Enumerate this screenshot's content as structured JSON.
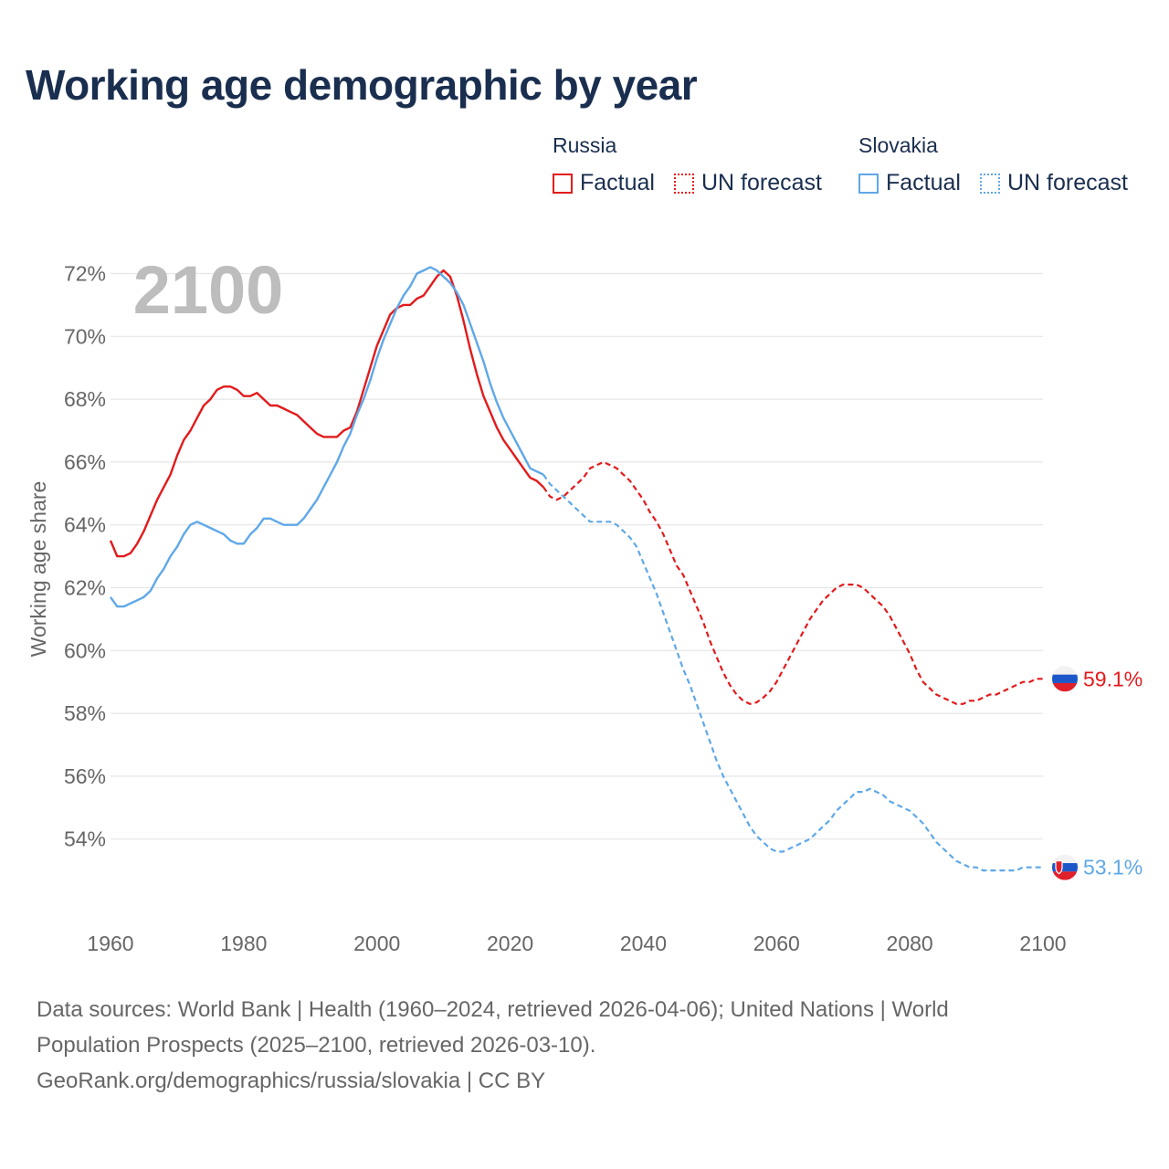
{
  "title": "Working age demographic by year",
  "legend": {
    "groups": [
      {
        "name": "Russia",
        "color": "#e31a1c",
        "items": [
          {
            "label": "Factual",
            "style": "solid"
          },
          {
            "label": "UN forecast",
            "style": "dotted"
          }
        ]
      },
      {
        "name": "Slovakia",
        "color": "#5fa8e8",
        "items": [
          {
            "label": "Factual",
            "style": "solid"
          },
          {
            "label": "UN forecast",
            "style": "dotted"
          }
        ]
      }
    ]
  },
  "year_watermark": "2100",
  "footer": {
    "line1": "Data sources: World Bank | Health (1960–2024, retrieved 2026-04-06); United Nations | World",
    "line2": "Population Prospects (2025–2100, retrieved 2026-03-10).",
    "line3": "GeoRank.org/demographics/russia/slovakia | CC BY"
  },
  "chart_data": {
    "type": "line",
    "title": "Working age demographic by year",
    "xlabel": "",
    "ylabel": "Working age share",
    "xlim": [
      1960,
      2100
    ],
    "ylim": [
      52.5,
      72.5
    ],
    "x_ticks": [
      1960,
      1980,
      2000,
      2020,
      2040,
      2060,
      2080,
      2100
    ],
    "y_ticks": [
      54,
      56,
      58,
      60,
      62,
      64,
      66,
      68,
      70,
      72
    ],
    "y_tick_suffix": "%",
    "grid": true,
    "series": [
      {
        "name": "Russia",
        "color": "#e31a1c",
        "forecast_start": 2025,
        "end_label": "59.1%",
        "points": [
          [
            1960,
            63.5
          ],
          [
            1961,
            63.0
          ],
          [
            1962,
            63.0
          ],
          [
            1963,
            63.1
          ],
          [
            1964,
            63.4
          ],
          [
            1965,
            63.8
          ],
          [
            1966,
            64.3
          ],
          [
            1967,
            64.8
          ],
          [
            1968,
            65.2
          ],
          [
            1969,
            65.6
          ],
          [
            1970,
            66.2
          ],
          [
            1971,
            66.7
          ],
          [
            1972,
            67.0
          ],
          [
            1973,
            67.4
          ],
          [
            1974,
            67.8
          ],
          [
            1975,
            68.0
          ],
          [
            1976,
            68.3
          ],
          [
            1977,
            68.4
          ],
          [
            1978,
            68.4
          ],
          [
            1979,
            68.3
          ],
          [
            1980,
            68.1
          ],
          [
            1981,
            68.1
          ],
          [
            1982,
            68.2
          ],
          [
            1983,
            68.0
          ],
          [
            1984,
            67.8
          ],
          [
            1985,
            67.8
          ],
          [
            1986,
            67.7
          ],
          [
            1987,
            67.6
          ],
          [
            1988,
            67.5
          ],
          [
            1989,
            67.3
          ],
          [
            1990,
            67.1
          ],
          [
            1991,
            66.9
          ],
          [
            1992,
            66.8
          ],
          [
            1993,
            66.8
          ],
          [
            1994,
            66.8
          ],
          [
            1995,
            67.0
          ],
          [
            1996,
            67.1
          ],
          [
            1997,
            67.6
          ],
          [
            1998,
            68.3
          ],
          [
            1999,
            69.0
          ],
          [
            2000,
            69.7
          ],
          [
            2001,
            70.2
          ],
          [
            2002,
            70.7
          ],
          [
            2003,
            70.9
          ],
          [
            2004,
            71.0
          ],
          [
            2005,
            71.0
          ],
          [
            2006,
            71.2
          ],
          [
            2007,
            71.3
          ],
          [
            2008,
            71.6
          ],
          [
            2009,
            71.9
          ],
          [
            2010,
            72.1
          ],
          [
            2011,
            71.9
          ],
          [
            2012,
            71.3
          ],
          [
            2013,
            70.5
          ],
          [
            2014,
            69.6
          ],
          [
            2015,
            68.8
          ],
          [
            2016,
            68.1
          ],
          [
            2017,
            67.6
          ],
          [
            2018,
            67.1
          ],
          [
            2019,
            66.7
          ],
          [
            2020,
            66.4
          ],
          [
            2021,
            66.1
          ],
          [
            2022,
            65.8
          ],
          [
            2023,
            65.5
          ],
          [
            2024,
            65.4
          ],
          [
            2025,
            65.2
          ],
          [
            2026,
            64.9
          ],
          [
            2027,
            64.8
          ],
          [
            2028,
            64.9
          ],
          [
            2029,
            65.1
          ],
          [
            2030,
            65.3
          ],
          [
            2031,
            65.5
          ],
          [
            2032,
            65.8
          ],
          [
            2033,
            65.9
          ],
          [
            2034,
            66.0
          ],
          [
            2035,
            65.9
          ],
          [
            2036,
            65.8
          ],
          [
            2037,
            65.6
          ],
          [
            2038,
            65.4
          ],
          [
            2039,
            65.1
          ],
          [
            2040,
            64.8
          ],
          [
            2041,
            64.4
          ],
          [
            2042,
            64.1
          ],
          [
            2043,
            63.7
          ],
          [
            2044,
            63.2
          ],
          [
            2045,
            62.7
          ],
          [
            2046,
            62.4
          ],
          [
            2047,
            61.9
          ],
          [
            2048,
            61.4
          ],
          [
            2049,
            60.9
          ],
          [
            2050,
            60.3
          ],
          [
            2051,
            59.8
          ],
          [
            2052,
            59.3
          ],
          [
            2053,
            58.9
          ],
          [
            2054,
            58.6
          ],
          [
            2055,
            58.4
          ],
          [
            2056,
            58.3
          ],
          [
            2057,
            58.35
          ],
          [
            2058,
            58.5
          ],
          [
            2059,
            58.7
          ],
          [
            2060,
            59.0
          ],
          [
            2061,
            59.4
          ],
          [
            2062,
            59.8
          ],
          [
            2063,
            60.2
          ],
          [
            2064,
            60.6
          ],
          [
            2065,
            61.0
          ],
          [
            2066,
            61.3
          ],
          [
            2067,
            61.6
          ],
          [
            2068,
            61.8
          ],
          [
            2069,
            62.0
          ],
          [
            2070,
            62.1
          ],
          [
            2071,
            62.1
          ],
          [
            2072,
            62.1
          ],
          [
            2073,
            62.0
          ],
          [
            2074,
            61.8
          ],
          [
            2075,
            61.6
          ],
          [
            2076,
            61.4
          ],
          [
            2077,
            61.1
          ],
          [
            2078,
            60.7
          ],
          [
            2079,
            60.3
          ],
          [
            2080,
            59.9
          ],
          [
            2081,
            59.4
          ],
          [
            2082,
            59.0
          ],
          [
            2083,
            58.8
          ],
          [
            2084,
            58.6
          ],
          [
            2085,
            58.5
          ],
          [
            2086,
            58.4
          ],
          [
            2087,
            58.3
          ],
          [
            2088,
            58.3
          ],
          [
            2089,
            58.4
          ],
          [
            2090,
            58.4
          ],
          [
            2091,
            58.5
          ],
          [
            2092,
            58.6
          ],
          [
            2093,
            58.6
          ],
          [
            2094,
            58.7
          ],
          [
            2095,
            58.8
          ],
          [
            2096,
            58.9
          ],
          [
            2097,
            59.0
          ],
          [
            2098,
            59.0
          ],
          [
            2099,
            59.1
          ],
          [
            2100,
            59.1
          ]
        ]
      },
      {
        "name": "Slovakia",
        "color": "#5fa8e8",
        "forecast_start": 2025,
        "end_label": "53.1%",
        "points": [
          [
            1960,
            61.7
          ],
          [
            1961,
            61.4
          ],
          [
            1962,
            61.4
          ],
          [
            1963,
            61.5
          ],
          [
            1964,
            61.6
          ],
          [
            1965,
            61.7
          ],
          [
            1966,
            61.9
          ],
          [
            1967,
            62.3
          ],
          [
            1968,
            62.6
          ],
          [
            1969,
            63.0
          ],
          [
            1970,
            63.3
          ],
          [
            1971,
            63.7
          ],
          [
            1972,
            64.0
          ],
          [
            1973,
            64.1
          ],
          [
            1974,
            64.0
          ],
          [
            1975,
            63.9
          ],
          [
            1976,
            63.8
          ],
          [
            1977,
            63.7
          ],
          [
            1978,
            63.5
          ],
          [
            1979,
            63.4
          ],
          [
            1980,
            63.4
          ],
          [
            1981,
            63.7
          ],
          [
            1982,
            63.9
          ],
          [
            1983,
            64.2
          ],
          [
            1984,
            64.2
          ],
          [
            1985,
            64.1
          ],
          [
            1986,
            64.0
          ],
          [
            1987,
            64.0
          ],
          [
            1988,
            64.0
          ],
          [
            1989,
            64.2
          ],
          [
            1990,
            64.5
          ],
          [
            1991,
            64.8
          ],
          [
            1992,
            65.2
          ],
          [
            1993,
            65.6
          ],
          [
            1994,
            66.0
          ],
          [
            1995,
            66.5
          ],
          [
            1996,
            66.9
          ],
          [
            1997,
            67.5
          ],
          [
            1998,
            68.0
          ],
          [
            1999,
            68.6
          ],
          [
            2000,
            69.3
          ],
          [
            2001,
            69.9
          ],
          [
            2002,
            70.4
          ],
          [
            2003,
            70.9
          ],
          [
            2004,
            71.3
          ],
          [
            2005,
            71.6
          ],
          [
            2006,
            72.0
          ],
          [
            2007,
            72.1
          ],
          [
            2008,
            72.2
          ],
          [
            2009,
            72.1
          ],
          [
            2010,
            71.9
          ],
          [
            2011,
            71.7
          ],
          [
            2012,
            71.4
          ],
          [
            2013,
            71.0
          ],
          [
            2014,
            70.4
          ],
          [
            2015,
            69.8
          ],
          [
            2016,
            69.2
          ],
          [
            2017,
            68.5
          ],
          [
            2018,
            67.9
          ],
          [
            2019,
            67.4
          ],
          [
            2020,
            67.0
          ],
          [
            2021,
            66.6
          ],
          [
            2022,
            66.2
          ],
          [
            2023,
            65.8
          ],
          [
            2024,
            65.7
          ],
          [
            2025,
            65.6
          ],
          [
            2026,
            65.3
          ],
          [
            2027,
            65.1
          ],
          [
            2028,
            64.9
          ],
          [
            2029,
            64.7
          ],
          [
            2030,
            64.5
          ],
          [
            2031,
            64.3
          ],
          [
            2032,
            64.1
          ],
          [
            2033,
            64.1
          ],
          [
            2034,
            64.1
          ],
          [
            2035,
            64.1
          ],
          [
            2036,
            64.0
          ],
          [
            2037,
            63.8
          ],
          [
            2038,
            63.6
          ],
          [
            2039,
            63.3
          ],
          [
            2040,
            62.8
          ],
          [
            2041,
            62.3
          ],
          [
            2042,
            61.8
          ],
          [
            2043,
            61.2
          ],
          [
            2044,
            60.6
          ],
          [
            2045,
            60.0
          ],
          [
            2046,
            59.4
          ],
          [
            2047,
            58.9
          ],
          [
            2048,
            58.3
          ],
          [
            2049,
            57.7
          ],
          [
            2050,
            57.1
          ],
          [
            2051,
            56.5
          ],
          [
            2052,
            56.0
          ],
          [
            2053,
            55.6
          ],
          [
            2054,
            55.2
          ],
          [
            2055,
            54.8
          ],
          [
            2056,
            54.4
          ],
          [
            2057,
            54.1
          ],
          [
            2058,
            53.9
          ],
          [
            2059,
            53.7
          ],
          [
            2060,
            53.6
          ],
          [
            2061,
            53.6
          ],
          [
            2062,
            53.7
          ],
          [
            2063,
            53.8
          ],
          [
            2064,
            53.9
          ],
          [
            2065,
            54.0
          ],
          [
            2066,
            54.2
          ],
          [
            2067,
            54.4
          ],
          [
            2068,
            54.6
          ],
          [
            2069,
            54.9
          ],
          [
            2070,
            55.1
          ],
          [
            2071,
            55.3
          ],
          [
            2072,
            55.5
          ],
          [
            2073,
            55.5
          ],
          [
            2074,
            55.6
          ],
          [
            2075,
            55.5
          ],
          [
            2076,
            55.4
          ],
          [
            2077,
            55.2
          ],
          [
            2078,
            55.1
          ],
          [
            2079,
            55.0
          ],
          [
            2080,
            54.9
          ],
          [
            2081,
            54.7
          ],
          [
            2082,
            54.5
          ],
          [
            2083,
            54.2
          ],
          [
            2084,
            53.9
          ],
          [
            2085,
            53.7
          ],
          [
            2086,
            53.5
          ],
          [
            2087,
            53.3
          ],
          [
            2088,
            53.2
          ],
          [
            2089,
            53.1
          ],
          [
            2090,
            53.1
          ],
          [
            2091,
            53.0
          ],
          [
            2092,
            53.0
          ],
          [
            2093,
            53.0
          ],
          [
            2094,
            53.0
          ],
          [
            2095,
            53.0
          ],
          [
            2096,
            53.0
          ],
          [
            2097,
            53.1
          ],
          [
            2098,
            53.1
          ],
          [
            2099,
            53.1
          ],
          [
            2100,
            53.1
          ]
        ]
      }
    ]
  }
}
